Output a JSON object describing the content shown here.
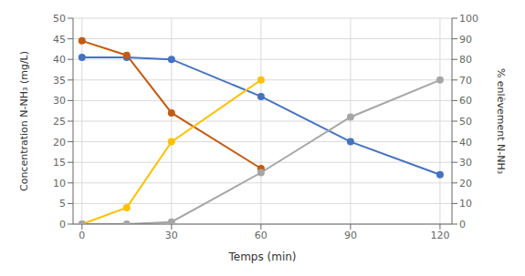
{
  "chart_data": {
    "type": "line",
    "xlabel": "Temps (min)",
    "ylabel": "Concentration N-NH₃ (mg/L)",
    "y2label": "% enlèvement N-NH₃",
    "xlim": [
      -3,
      124
    ],
    "xticks": [
      0,
      30,
      60,
      90,
      120
    ],
    "ylim": [
      0,
      50
    ],
    "yticks": [
      0,
      5,
      10,
      15,
      20,
      25,
      30,
      35,
      40,
      45,
      50
    ],
    "y2lim": [
      0,
      100
    ],
    "y2ticks": [
      0,
      10,
      20,
      30,
      40,
      50,
      60,
      70,
      80,
      90,
      100
    ],
    "grid": true,
    "series": [
      {
        "x": [
          0,
          15,
          30,
          60,
          90,
          120
        ],
        "values": [
          40.5,
          40.5,
          40.0,
          31.0,
          20.0,
          12.0
        ],
        "color": "#4472C4",
        "marker": "circle"
      },
      {
        "x": [
          0,
          15,
          30,
          60
        ],
        "values": [
          44.5,
          41.0,
          27.0,
          13.5
        ],
        "color": "#C55A11",
        "marker": "circle"
      },
      {
        "x": [
          0,
          15,
          30,
          60
        ],
        "values": [
          0.0,
          8.0,
          40.0,
          70.0
        ],
        "color": "#FFC000",
        "marker": "circle",
        "axis": "y2"
      },
      {
        "x": [
          0,
          15,
          30,
          60,
          90,
          120
        ],
        "values": [
          0.0,
          0.0,
          1.0,
          25.0,
          52.0,
          70.0
        ],
        "color": "#A6A6A6",
        "marker": "circle",
        "axis": "y2"
      }
    ]
  }
}
